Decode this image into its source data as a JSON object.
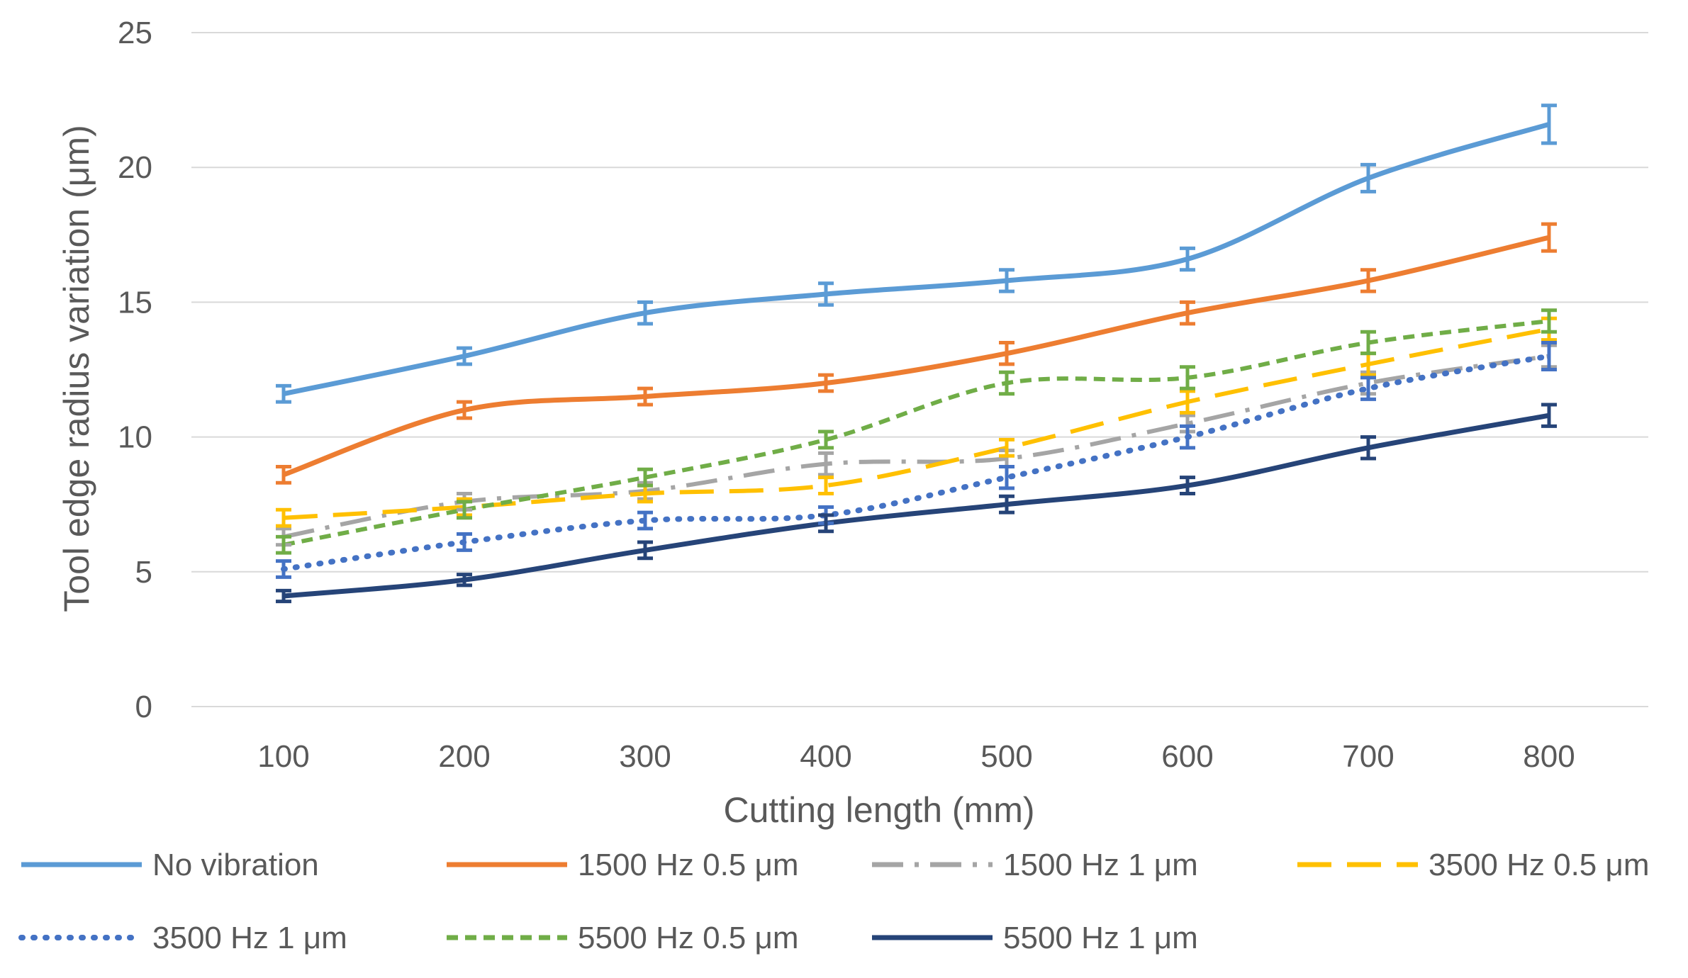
{
  "chart_data": {
    "type": "line",
    "title": "",
    "xlabel": "Cutting length (mm)",
    "ylabel": "Tool edge radius variation (μm)",
    "x": [
      100,
      200,
      300,
      400,
      500,
      600,
      700,
      800
    ],
    "categories": [
      "100",
      "200",
      "300",
      "400",
      "500",
      "600",
      "700",
      "800"
    ],
    "ylim": [
      0,
      25
    ],
    "yticks": [
      0,
      5,
      10,
      15,
      20,
      25
    ],
    "grid": true,
    "legend_position": "bottom",
    "series": [
      {
        "name": "No vibration",
        "values": [
          11.6,
          13.0,
          14.6,
          15.3,
          15.8,
          16.6,
          19.6,
          21.6
        ],
        "errors": [
          0.3,
          0.3,
          0.4,
          0.4,
          0.4,
          0.4,
          0.5,
          0.7
        ],
        "color": "#5B9BD5",
        "style": "solid"
      },
      {
        "name": "1500 Hz 0.5 μm",
        "values": [
          8.6,
          11.0,
          11.5,
          12.0,
          13.1,
          14.6,
          15.8,
          17.4
        ],
        "errors": [
          0.3,
          0.3,
          0.3,
          0.3,
          0.4,
          0.4,
          0.4,
          0.5
        ],
        "color": "#ED7D31",
        "style": "solid"
      },
      {
        "name": "1500 Hz 1 μm",
        "values": [
          6.3,
          7.6,
          8.0,
          9.0,
          9.2,
          10.5,
          12.0,
          13.0
        ],
        "errors": [
          0.3,
          0.3,
          0.3,
          0.4,
          0.3,
          0.3,
          0.4,
          0.4
        ],
        "color": "#A5A5A5",
        "style": "dashdot"
      },
      {
        "name": "3500 Hz 0.5 μm",
        "values": [
          7.0,
          7.4,
          7.9,
          8.2,
          9.6,
          11.3,
          12.7,
          14.0
        ],
        "errors": [
          0.3,
          0.3,
          0.3,
          0.3,
          0.3,
          0.4,
          0.4,
          0.4
        ],
        "color": "#FFC000",
        "style": "longdash"
      },
      {
        "name": "3500 Hz 1 μm",
        "values": [
          5.1,
          6.1,
          6.9,
          7.1,
          8.5,
          10.0,
          11.8,
          13.0
        ],
        "errors": [
          0.3,
          0.3,
          0.3,
          0.3,
          0.4,
          0.4,
          0.4,
          0.5
        ],
        "color": "#4472C4",
        "style": "dotted"
      },
      {
        "name": "5500 Hz 0.5 μm",
        "values": [
          6.0,
          7.3,
          8.5,
          9.9,
          12.0,
          12.2,
          13.5,
          14.3
        ],
        "errors": [
          0.3,
          0.3,
          0.3,
          0.3,
          0.4,
          0.4,
          0.4,
          0.4
        ],
        "color": "#70AD47",
        "style": "dashed"
      },
      {
        "name": "5500 Hz 1 μm",
        "values": [
          4.1,
          4.7,
          5.8,
          6.8,
          7.5,
          8.2,
          9.6,
          10.8
        ],
        "errors": [
          0.2,
          0.2,
          0.3,
          0.3,
          0.3,
          0.3,
          0.4,
          0.4
        ],
        "color": "#264478",
        "style": "solid"
      }
    ]
  }
}
